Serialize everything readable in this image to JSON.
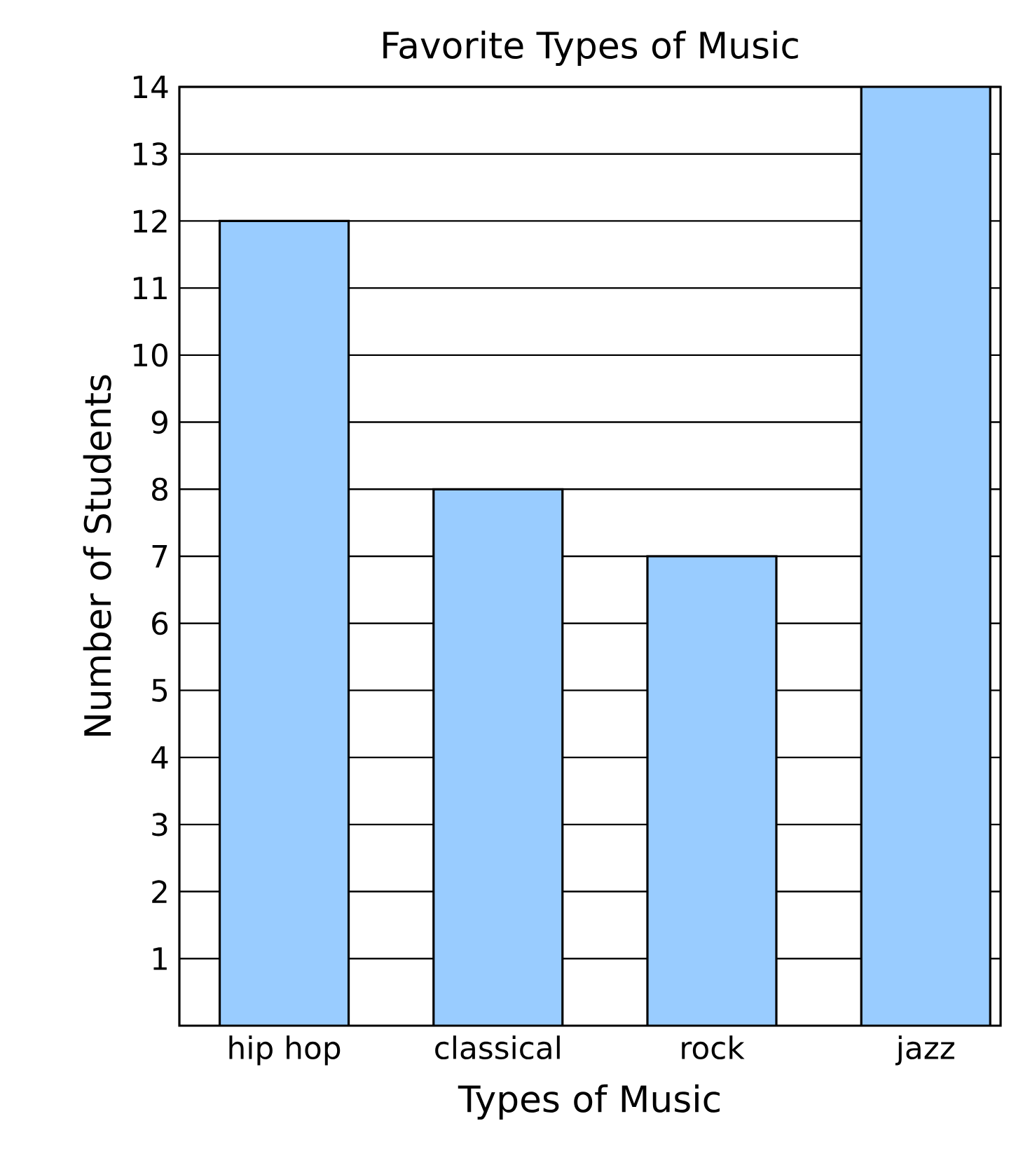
{
  "chart_data": {
    "type": "bar",
    "title": "Favorite Types of Music",
    "xlabel": "Types of Music",
    "ylabel": "Number of Students",
    "categories": [
      "hip hop",
      "classical",
      "rock",
      "jazz"
    ],
    "values": [
      12,
      8,
      7,
      14
    ],
    "color": "#99ccff",
    "ylim": [
      0,
      14
    ],
    "yticks": [
      1,
      2,
      3,
      4,
      5,
      6,
      7,
      8,
      9,
      10,
      11,
      12,
      13,
      14
    ],
    "grid": "y"
  }
}
